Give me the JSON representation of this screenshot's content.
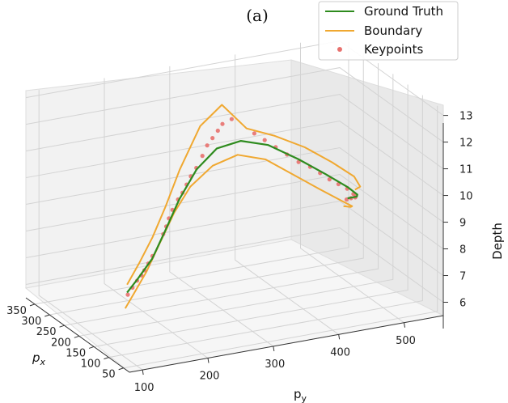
{
  "chart_data": {
    "type": "line",
    "projection": "3d",
    "panel_label": "(a)",
    "xlabel": "px",
    "ylabel": "py",
    "zlabel": "Depth",
    "xlim": [
      30,
      380
    ],
    "ylim": [
      80,
      560
    ],
    "zlim": [
      5.5,
      13.2
    ],
    "x_ticks": [
      "50",
      "100",
      "150",
      "200",
      "250",
      "300",
      "350"
    ],
    "y_ticks": [
      "100",
      "200",
      "300",
      "400",
      "500"
    ],
    "z_ticks": [
      "6",
      "7",
      "8",
      "9",
      "10",
      "11",
      "12",
      "13"
    ],
    "grid": true,
    "legend_position": "top-right",
    "series": [
      {
        "name": "Ground Truth",
        "kind": "line",
        "color": "#2e8b1e",
        "points": [
          [
            60,
            90,
            8.2
          ],
          [
            90,
            120,
            8.35
          ],
          [
            130,
            160,
            8.6
          ],
          [
            175,
            200,
            9.1
          ],
          [
            215,
            240,
            9.8
          ],
          [
            245,
            280,
            10.5
          ],
          [
            265,
            320,
            10.95
          ],
          [
            272,
            360,
            11.0
          ],
          [
            268,
            400,
            10.7
          ],
          [
            255,
            440,
            10.1
          ],
          [
            240,
            475,
            9.5
          ],
          [
            230,
            505,
            8.95
          ],
          [
            232,
            520,
            8.6
          ],
          [
            245,
            525,
            8.4
          ],
          [
            265,
            520,
            8.2
          ]
        ]
      },
      {
        "name": "Boundary",
        "kind": "line",
        "color": "#f0a830",
        "points_upper": [
          [
            60,
            90,
            8.5
          ],
          [
            95,
            125,
            8.9
          ],
          [
            140,
            165,
            9.3
          ],
          [
            185,
            205,
            9.9
          ],
          [
            225,
            245,
            10.8
          ],
          [
            255,
            290,
            12.0
          ],
          [
            270,
            330,
            12.5
          ],
          [
            275,
            370,
            11.4
          ],
          [
            268,
            410,
            11.0
          ],
          [
            255,
            450,
            10.5
          ],
          [
            240,
            485,
            9.9
          ],
          [
            232,
            515,
            9.3
          ],
          [
            240,
            528,
            8.8
          ],
          [
            262,
            530,
            8.5
          ]
        ],
        "points_lower": [
          [
            62,
            88,
            7.6
          ],
          [
            100,
            118,
            7.7
          ],
          [
            145,
            158,
            8.0
          ],
          [
            190,
            198,
            8.5
          ],
          [
            228,
            238,
            9.2
          ],
          [
            255,
            275,
            9.8
          ],
          [
            268,
            315,
            10.3
          ],
          [
            272,
            355,
            10.5
          ],
          [
            266,
            395,
            10.2
          ],
          [
            252,
            430,
            9.6
          ],
          [
            238,
            465,
            9.0
          ],
          [
            228,
            495,
            8.5
          ],
          [
            232,
            512,
            8.2
          ],
          [
            250,
            518,
            8.0
          ],
          [
            268,
            515,
            7.9
          ]
        ]
      },
      {
        "name": "Keypoints",
        "kind": "scatter",
        "color": "#e8716e",
        "points": [
          [
            62,
            92,
            8.1
          ],
          [
            75,
            105,
            8.2
          ],
          [
            88,
            118,
            8.3
          ],
          [
            100,
            130,
            8.35
          ],
          [
            112,
            140,
            8.4
          ],
          [
            125,
            152,
            8.5
          ],
          [
            140,
            165,
            8.6
          ],
          [
            170,
            195,
            9.05
          ],
          [
            182,
            205,
            9.2
          ],
          [
            195,
            215,
            9.35
          ],
          [
            205,
            225,
            9.55
          ],
          [
            215,
            238,
            9.8
          ],
          [
            222,
            248,
            9.95
          ],
          [
            230,
            258,
            10.15
          ],
          [
            238,
            268,
            10.35
          ],
          [
            246,
            280,
            10.55
          ],
          [
            252,
            292,
            10.9
          ],
          [
            258,
            302,
            11.2
          ],
          [
            262,
            312,
            11.4
          ],
          [
            266,
            322,
            11.6
          ],
          [
            268,
            330,
            11.8
          ],
          [
            270,
            345,
            11.9
          ],
          [
            271,
            380,
            11.2
          ],
          [
            269,
            395,
            10.9
          ],
          [
            265,
            410,
            10.6
          ],
          [
            260,
            425,
            10.3
          ],
          [
            254,
            440,
            10.0
          ],
          [
            248,
            455,
            9.8
          ],
          [
            243,
            468,
            9.55
          ],
          [
            238,
            480,
            9.3
          ],
          [
            234,
            492,
            9.1
          ],
          [
            231,
            504,
            8.9
          ],
          [
            232,
            514,
            8.65
          ],
          [
            238,
            520,
            8.5
          ],
          [
            248,
            524,
            8.35
          ],
          [
            258,
            522,
            8.25
          ],
          [
            266,
            519,
            8.15
          ]
        ]
      }
    ]
  }
}
